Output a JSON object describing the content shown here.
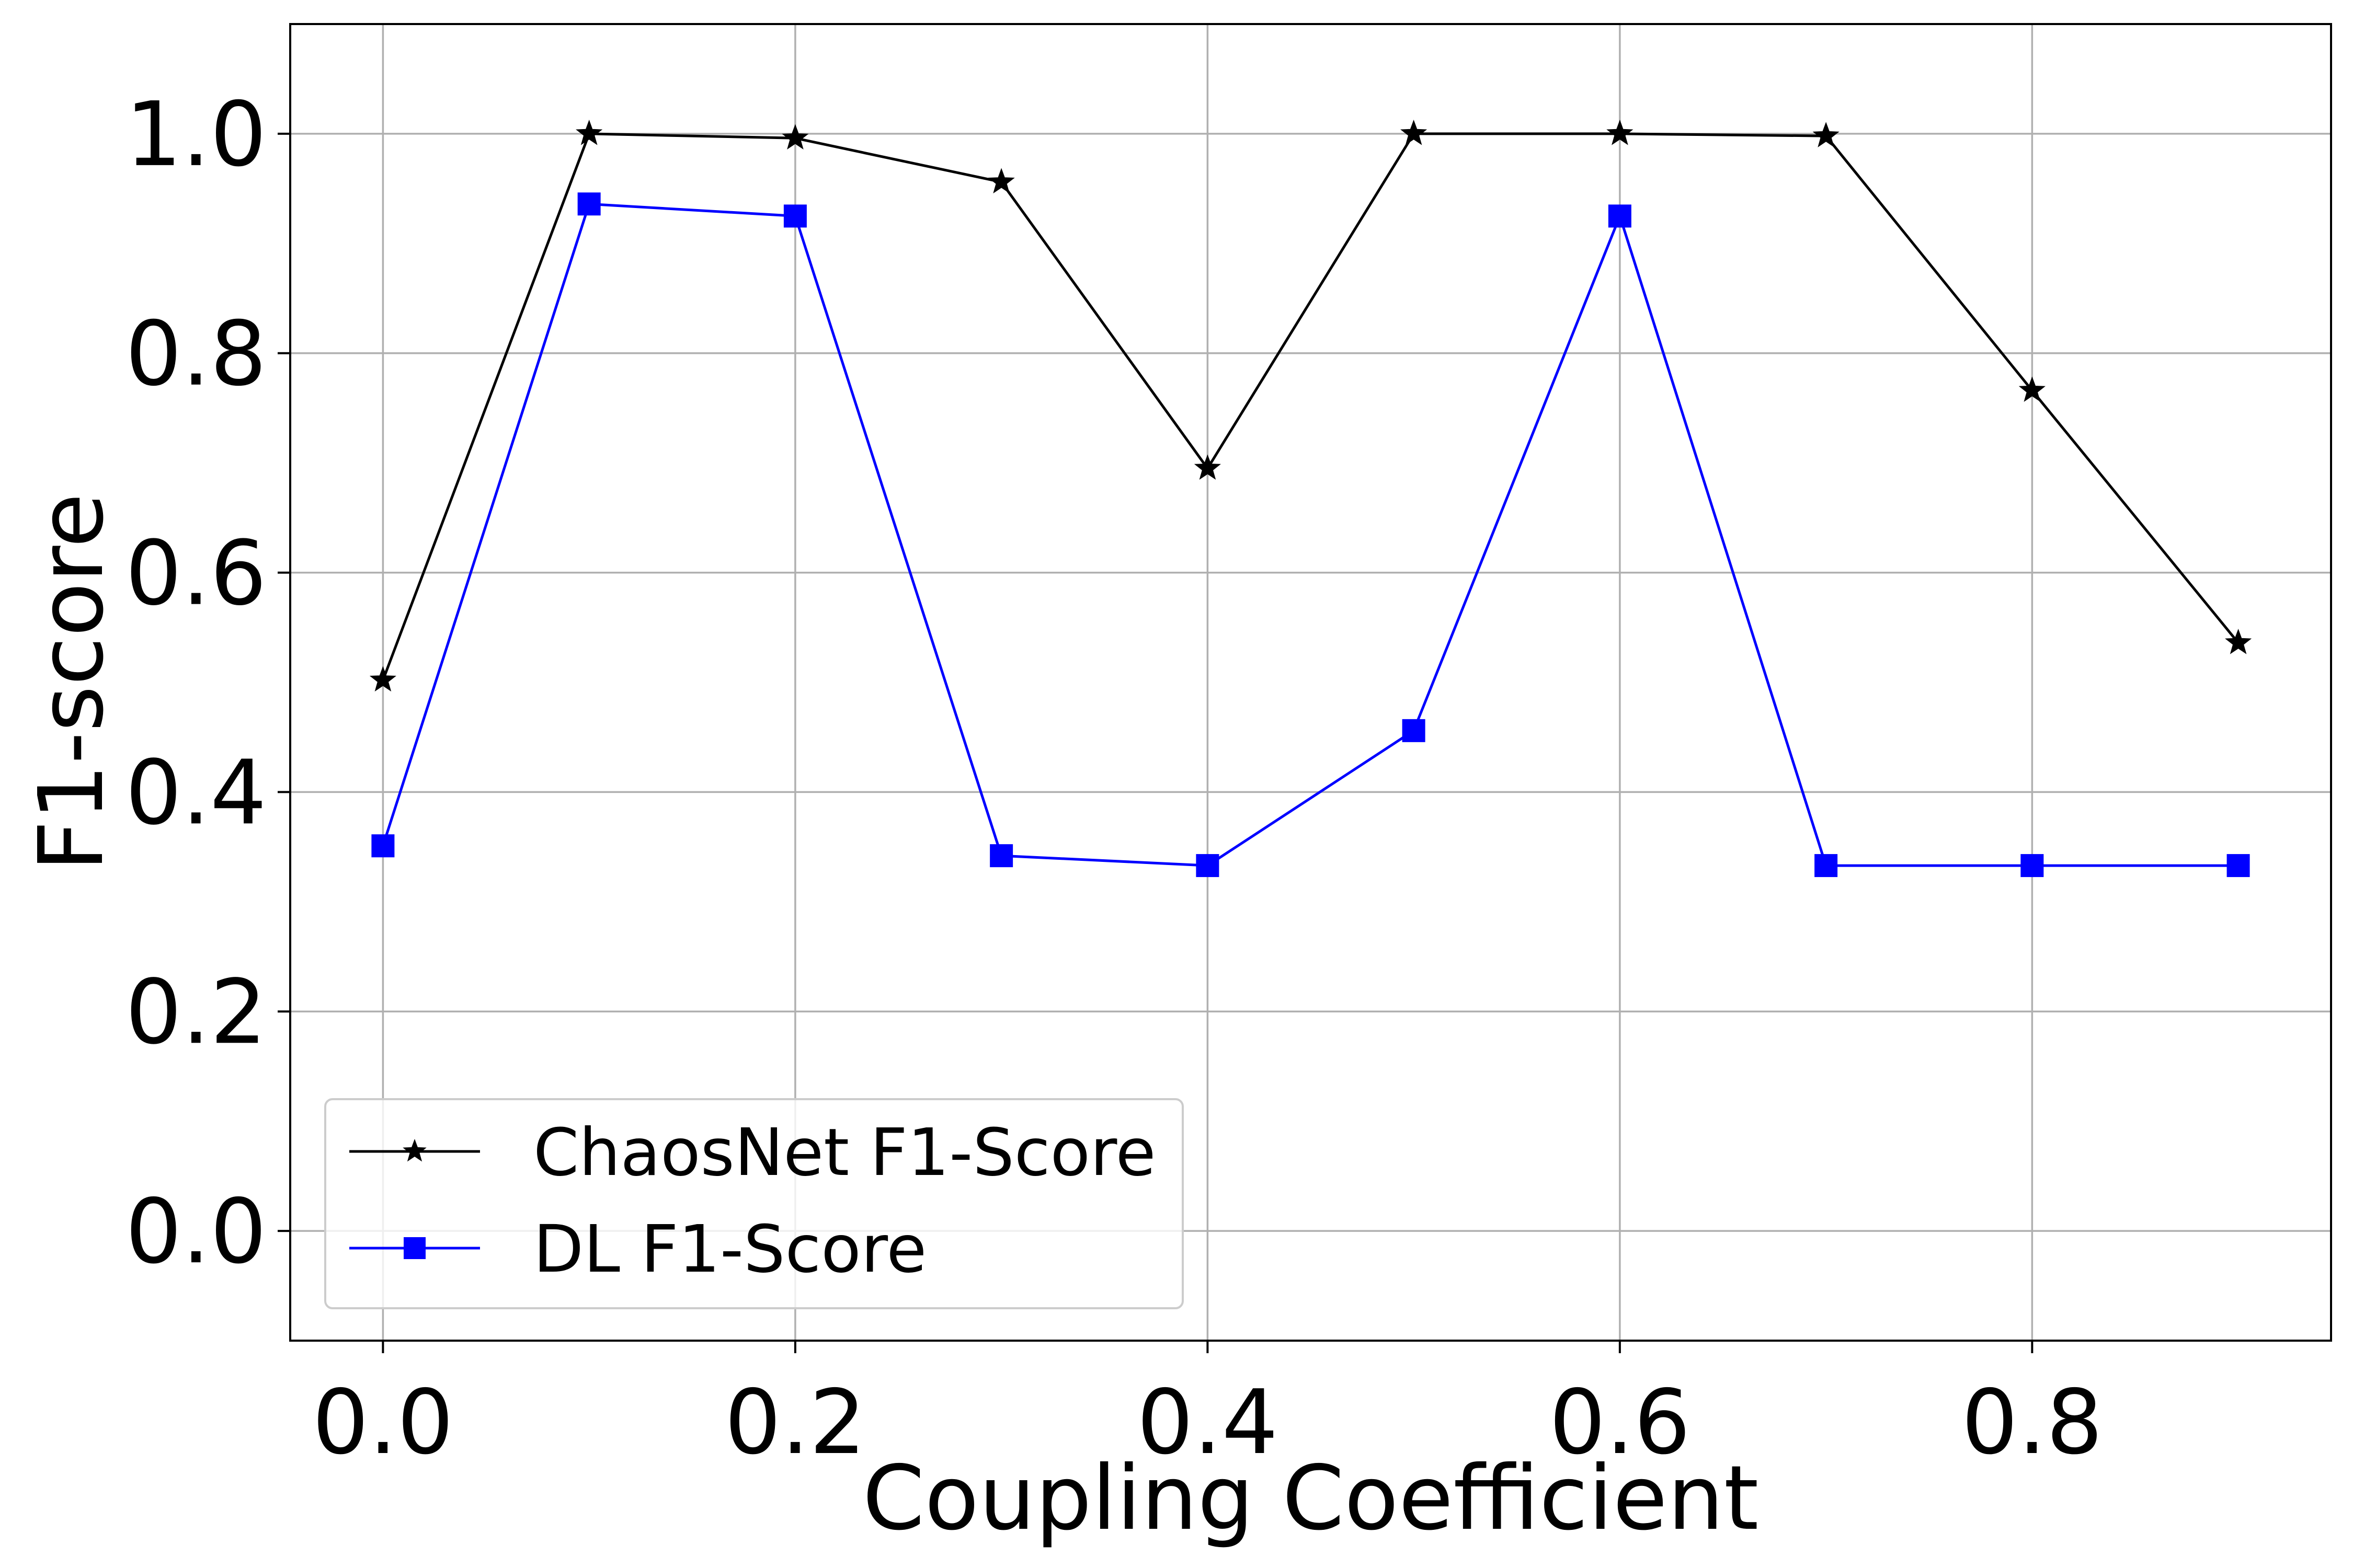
{
  "chart_data": {
    "type": "line",
    "title": "",
    "xlabel": "Coupling Coefficient",
    "ylabel": "F1-score",
    "xlim": [
      -0.045,
      0.945
    ],
    "ylim": [
      -0.1,
      1.1
    ],
    "xticks": [
      0.0,
      0.2,
      0.4,
      0.6,
      0.8
    ],
    "xtick_labels": [
      "0.0",
      "0.2",
      "0.4",
      "0.6",
      "0.8"
    ],
    "yticks": [
      0.0,
      0.2,
      0.4,
      0.6,
      0.8,
      1.0
    ],
    "ytick_labels": [
      "0.0",
      "0.2",
      "0.4",
      "0.6",
      "0.8",
      "1.0"
    ],
    "grid": true,
    "legend_position": "lower-left",
    "x": [
      0.0,
      0.1,
      0.2,
      0.3,
      0.4,
      0.5,
      0.6,
      0.7,
      0.8,
      0.9
    ],
    "series": [
      {
        "name": "ChaosNet F1-Score",
        "color": "#000000",
        "marker": "star",
        "values": [
          0.502,
          1.0,
          0.996,
          0.956,
          0.695,
          1.0,
          1.0,
          0.998,
          0.766,
          0.536
        ]
      },
      {
        "name": "DL F1-Score",
        "color": "#0000ff",
        "marker": "square",
        "values": [
          0.351,
          0.936,
          0.925,
          0.342,
          0.333,
          0.456,
          0.925,
          0.333,
          0.333,
          0.333
        ]
      }
    ]
  }
}
